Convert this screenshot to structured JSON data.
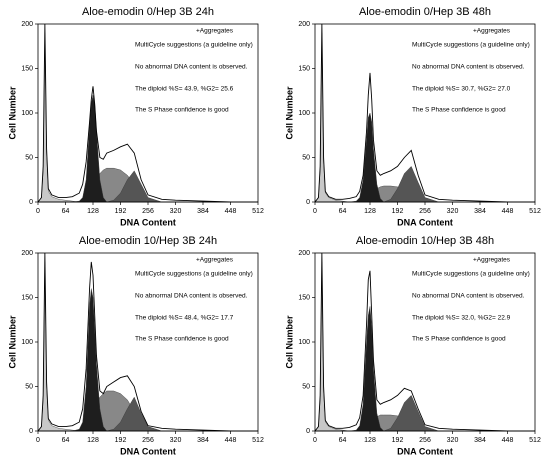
{
  "chart_data": [
    {
      "type": "area",
      "title": "Aloe-emodin 0/Hep 3B 24h",
      "xlabel": "DNA Content",
      "ylabel": "Cell Number",
      "annotations": [
        "+Aggregates",
        "MultiCycle suggestions (a guideline only)",
        "No abnormal DNA content is observed.",
        "The diploid %S= 43.9, %G2= 25.6",
        "The S Phase confidence is good"
      ],
      "annotation_colors": [
        "#000000",
        "#000000",
        "#000000",
        "#000000",
        "#8a8a8a"
      ],
      "xlim": [
        0,
        512
      ],
      "ylim": [
        0,
        200
      ],
      "xticks": [
        0,
        64,
        128,
        192,
        256,
        320,
        384,
        448,
        512
      ],
      "yticks": [
        0,
        50,
        100,
        150,
        200
      ],
      "x": [
        0,
        8,
        12,
        16,
        20,
        24,
        32,
        48,
        64,
        80,
        96,
        104,
        112,
        120,
        124,
        128,
        132,
        136,
        144,
        152,
        160,
        176,
        192,
        208,
        224,
        240,
        256,
        288,
        320,
        384,
        448,
        512
      ],
      "series": [
        {
          "style": "area",
          "color": "#c8c8c8",
          "values": [
            0,
            5,
            35,
            190,
            55,
            12,
            6,
            3,
            2,
            1,
            0,
            0,
            0,
            0,
            0,
            0,
            0,
            0,
            0,
            0,
            0,
            0,
            0,
            0,
            0,
            0,
            0,
            0,
            0,
            0,
            0,
            0
          ]
        },
        {
          "style": "area",
          "color": "#888888",
          "values": [
            0,
            0,
            0,
            0,
            0,
            0,
            0,
            0,
            0,
            0,
            0,
            0,
            2,
            5,
            10,
            15,
            20,
            25,
            32,
            36,
            38,
            38,
            36,
            30,
            20,
            8,
            2,
            0,
            0,
            0,
            0,
            0
          ]
        },
        {
          "style": "area",
          "color": "#555555",
          "values": [
            0,
            0,
            0,
            0,
            0,
            0,
            0,
            0,
            0,
            0,
            0,
            0,
            0,
            0,
            0,
            0,
            0,
            0,
            0,
            0,
            0,
            2,
            10,
            25,
            35,
            20,
            5,
            0,
            0,
            0,
            0,
            0
          ]
        },
        {
          "style": "area",
          "color": "#1e1e1e",
          "values": [
            0,
            0,
            0,
            0,
            0,
            0,
            0,
            0,
            0,
            0,
            1,
            5,
            25,
            85,
            110,
            120,
            110,
            80,
            25,
            5,
            0,
            0,
            0,
            0,
            0,
            0,
            0,
            0,
            0,
            0,
            0,
            0
          ]
        },
        {
          "style": "line",
          "color": "#000000",
          "values": [
            0,
            5,
            40,
            200,
            60,
            15,
            8,
            5,
            5,
            6,
            10,
            20,
            45,
            90,
            115,
            130,
            110,
            80,
            50,
            48,
            55,
            58,
            62,
            65,
            55,
            25,
            8,
            3,
            2,
            1,
            0,
            0
          ]
        }
      ]
    },
    {
      "type": "area",
      "title": "Aloe-emodin 0/Hep 3B 48h",
      "xlabel": "DNA Content",
      "ylabel": "Cell Number",
      "annotations": [
        "+Aggregates",
        "MultiCycle suggestions (a guideline only)",
        "No abnormal DNA content is observed.",
        "The diploid %S= 30.7, %G2= 27.0",
        "The S Phase confidence is good"
      ],
      "annotation_colors": [
        "#000000",
        "#000000",
        "#000000",
        "#000000",
        "#8a8a8a"
      ],
      "xlim": [
        0,
        512
      ],
      "ylim": [
        0,
        200
      ],
      "xticks": [
        0,
        64,
        128,
        192,
        256,
        320,
        384,
        448,
        512
      ],
      "yticks": [
        0,
        50,
        100,
        150,
        200
      ],
      "x": [
        0,
        8,
        12,
        16,
        20,
        24,
        32,
        48,
        64,
        80,
        96,
        104,
        112,
        120,
        124,
        128,
        132,
        136,
        144,
        152,
        160,
        176,
        192,
        208,
        224,
        240,
        256,
        288,
        320,
        384,
        448,
        512
      ],
      "series": [
        {
          "style": "area",
          "color": "#c8c8c8",
          "values": [
            0,
            5,
            35,
            190,
            45,
            10,
            5,
            2,
            1,
            0,
            0,
            0,
            0,
            0,
            0,
            0,
            0,
            0,
            0,
            0,
            0,
            0,
            0,
            0,
            0,
            0,
            0,
            0,
            0,
            0,
            0,
            0
          ]
        },
        {
          "style": "area",
          "color": "#888888",
          "values": [
            0,
            0,
            0,
            0,
            0,
            0,
            0,
            0,
            0,
            0,
            0,
            0,
            1,
            3,
            5,
            8,
            10,
            12,
            15,
            17,
            18,
            18,
            17,
            14,
            10,
            4,
            1,
            0,
            0,
            0,
            0,
            0
          ]
        },
        {
          "style": "area",
          "color": "#555555",
          "values": [
            0,
            0,
            0,
            0,
            0,
            0,
            0,
            0,
            0,
            0,
            0,
            0,
            0,
            0,
            0,
            0,
            0,
            0,
            0,
            0,
            0,
            3,
            15,
            32,
            40,
            22,
            5,
            0,
            0,
            0,
            0,
            0
          ]
        },
        {
          "style": "area",
          "color": "#1e1e1e",
          "values": [
            0,
            0,
            0,
            0,
            0,
            0,
            0,
            0,
            0,
            0,
            1,
            5,
            25,
            70,
            95,
            100,
            90,
            60,
            20,
            4,
            0,
            0,
            0,
            0,
            0,
            0,
            0,
            0,
            0,
            0,
            0,
            0
          ]
        },
        {
          "style": "line",
          "color": "#000000",
          "values": [
            0,
            5,
            40,
            200,
            50,
            12,
            6,
            3,
            3,
            4,
            6,
            12,
            30,
            80,
            120,
            145,
            115,
            70,
            35,
            30,
            32,
            35,
            40,
            50,
            58,
            30,
            8,
            3,
            2,
            1,
            0,
            0
          ]
        }
      ]
    },
    {
      "type": "area",
      "title": "Aloe-emodin 10/Hep 3B 24h",
      "xlabel": "DNA Content",
      "ylabel": "Cell Number",
      "annotations": [
        "+Aggregates",
        "MultiCycle suggestions (a guideline only)",
        "No abnormal DNA content is observed.",
        "The diploid %S= 48.4, %G2= 17.7",
        "The S Phase confidence is good"
      ],
      "annotation_colors": [
        "#000000",
        "#000000",
        "#000000",
        "#000000",
        "#8a8a8a"
      ],
      "xlim": [
        0,
        512
      ],
      "ylim": [
        0,
        200
      ],
      "xticks": [
        0,
        64,
        128,
        192,
        256,
        320,
        384,
        448,
        512
      ],
      "yticks": [
        0,
        50,
        100,
        150,
        200
      ],
      "x": [
        0,
        8,
        12,
        16,
        20,
        24,
        32,
        48,
        64,
        80,
        96,
        104,
        112,
        120,
        124,
        128,
        132,
        136,
        144,
        152,
        160,
        176,
        192,
        208,
        224,
        240,
        256,
        288,
        320,
        384,
        448,
        512
      ],
      "series": [
        {
          "style": "area",
          "color": "#c8c8c8",
          "values": [
            0,
            5,
            35,
            190,
            50,
            12,
            6,
            3,
            2,
            1,
            0,
            0,
            0,
            0,
            0,
            0,
            0,
            0,
            0,
            0,
            0,
            0,
            0,
            0,
            0,
            0,
            0,
            0,
            0,
            0,
            0,
            0
          ]
        },
        {
          "style": "area",
          "color": "#888888",
          "values": [
            0,
            0,
            0,
            0,
            0,
            0,
            0,
            0,
            0,
            0,
            0,
            0,
            3,
            10,
            15,
            20,
            25,
            30,
            38,
            42,
            45,
            45,
            42,
            35,
            22,
            8,
            2,
            0,
            0,
            0,
            0,
            0
          ]
        },
        {
          "style": "area",
          "color": "#555555",
          "values": [
            0,
            0,
            0,
            0,
            0,
            0,
            0,
            0,
            0,
            0,
            0,
            0,
            0,
            0,
            0,
            0,
            0,
            0,
            0,
            0,
            0,
            2,
            10,
            25,
            38,
            20,
            5,
            0,
            0,
            0,
            0,
            0
          ]
        },
        {
          "style": "area",
          "color": "#1e1e1e",
          "values": [
            0,
            0,
            0,
            0,
            0,
            0,
            0,
            0,
            0,
            0,
            2,
            10,
            50,
            140,
            160,
            150,
            115,
            75,
            25,
            5,
            0,
            0,
            0,
            0,
            0,
            0,
            0,
            0,
            0,
            0,
            0,
            0
          ]
        },
        {
          "style": "line",
          "color": "#000000",
          "values": [
            0,
            5,
            40,
            200,
            55,
            14,
            8,
            5,
            5,
            6,
            10,
            25,
            70,
            160,
            190,
            175,
            130,
            85,
            45,
            42,
            50,
            55,
            60,
            62,
            50,
            22,
            6,
            3,
            2,
            1,
            0,
            0
          ]
        }
      ]
    },
    {
      "type": "area",
      "title": "Aloe-emodin 10/Hep 3B 48h",
      "xlabel": "DNA Content",
      "ylabel": "Cell Number",
      "annotations": [
        "+Aggregates",
        "MultiCycle suggestions (a guideline only)",
        "No abnormal DNA content is observed.",
        "The diploid %S= 32.0, %G2= 22.9",
        "The S Phase confidence is good"
      ],
      "annotation_colors": [
        "#000000",
        "#000000",
        "#000000",
        "#000000",
        "#8a8a8a"
      ],
      "xlim": [
        0,
        512
      ],
      "ylim": [
        0,
        200
      ],
      "xticks": [
        0,
        64,
        128,
        192,
        256,
        320,
        384,
        448,
        512
      ],
      "yticks": [
        0,
        50,
        100,
        150,
        200
      ],
      "x": [
        0,
        8,
        12,
        16,
        20,
        24,
        32,
        48,
        64,
        80,
        96,
        104,
        112,
        120,
        124,
        128,
        132,
        136,
        144,
        152,
        160,
        176,
        192,
        208,
        224,
        240,
        256,
        288,
        320,
        384,
        448,
        512
      ],
      "series": [
        {
          "style": "area",
          "color": "#c8c8c8",
          "values": [
            0,
            5,
            35,
            190,
            45,
            10,
            5,
            2,
            1,
            0,
            0,
            0,
            0,
            0,
            0,
            0,
            0,
            0,
            0,
            0,
            0,
            0,
            0,
            0,
            0,
            0,
            0,
            0,
            0,
            0,
            0,
            0
          ]
        },
        {
          "style": "area",
          "color": "#888888",
          "values": [
            0,
            0,
            0,
            0,
            0,
            0,
            0,
            0,
            0,
            0,
            0,
            0,
            1,
            4,
            7,
            10,
            12,
            14,
            16,
            18,
            18,
            18,
            17,
            14,
            10,
            4,
            1,
            0,
            0,
            0,
            0,
            0
          ]
        },
        {
          "style": "area",
          "color": "#555555",
          "values": [
            0,
            0,
            0,
            0,
            0,
            0,
            0,
            0,
            0,
            0,
            0,
            0,
            0,
            0,
            0,
            0,
            0,
            0,
            0,
            0,
            0,
            3,
            15,
            32,
            40,
            22,
            5,
            0,
            0,
            0,
            0,
            0
          ]
        },
        {
          "style": "area",
          "color": "#1e1e1e",
          "values": [
            0,
            0,
            0,
            0,
            0,
            0,
            0,
            0,
            0,
            0,
            1,
            6,
            30,
            100,
            130,
            140,
            115,
            70,
            20,
            4,
            0,
            0,
            0,
            0,
            0,
            0,
            0,
            0,
            0,
            0,
            0,
            0
          ]
        },
        {
          "style": "line",
          "color": "#000000",
          "values": [
            0,
            5,
            40,
            200,
            50,
            12,
            6,
            3,
            3,
            4,
            7,
            15,
            40,
            120,
            170,
            180,
            130,
            80,
            35,
            30,
            32,
            35,
            40,
            48,
            45,
            25,
            7,
            3,
            2,
            1,
            0,
            0
          ]
        }
      ]
    }
  ]
}
